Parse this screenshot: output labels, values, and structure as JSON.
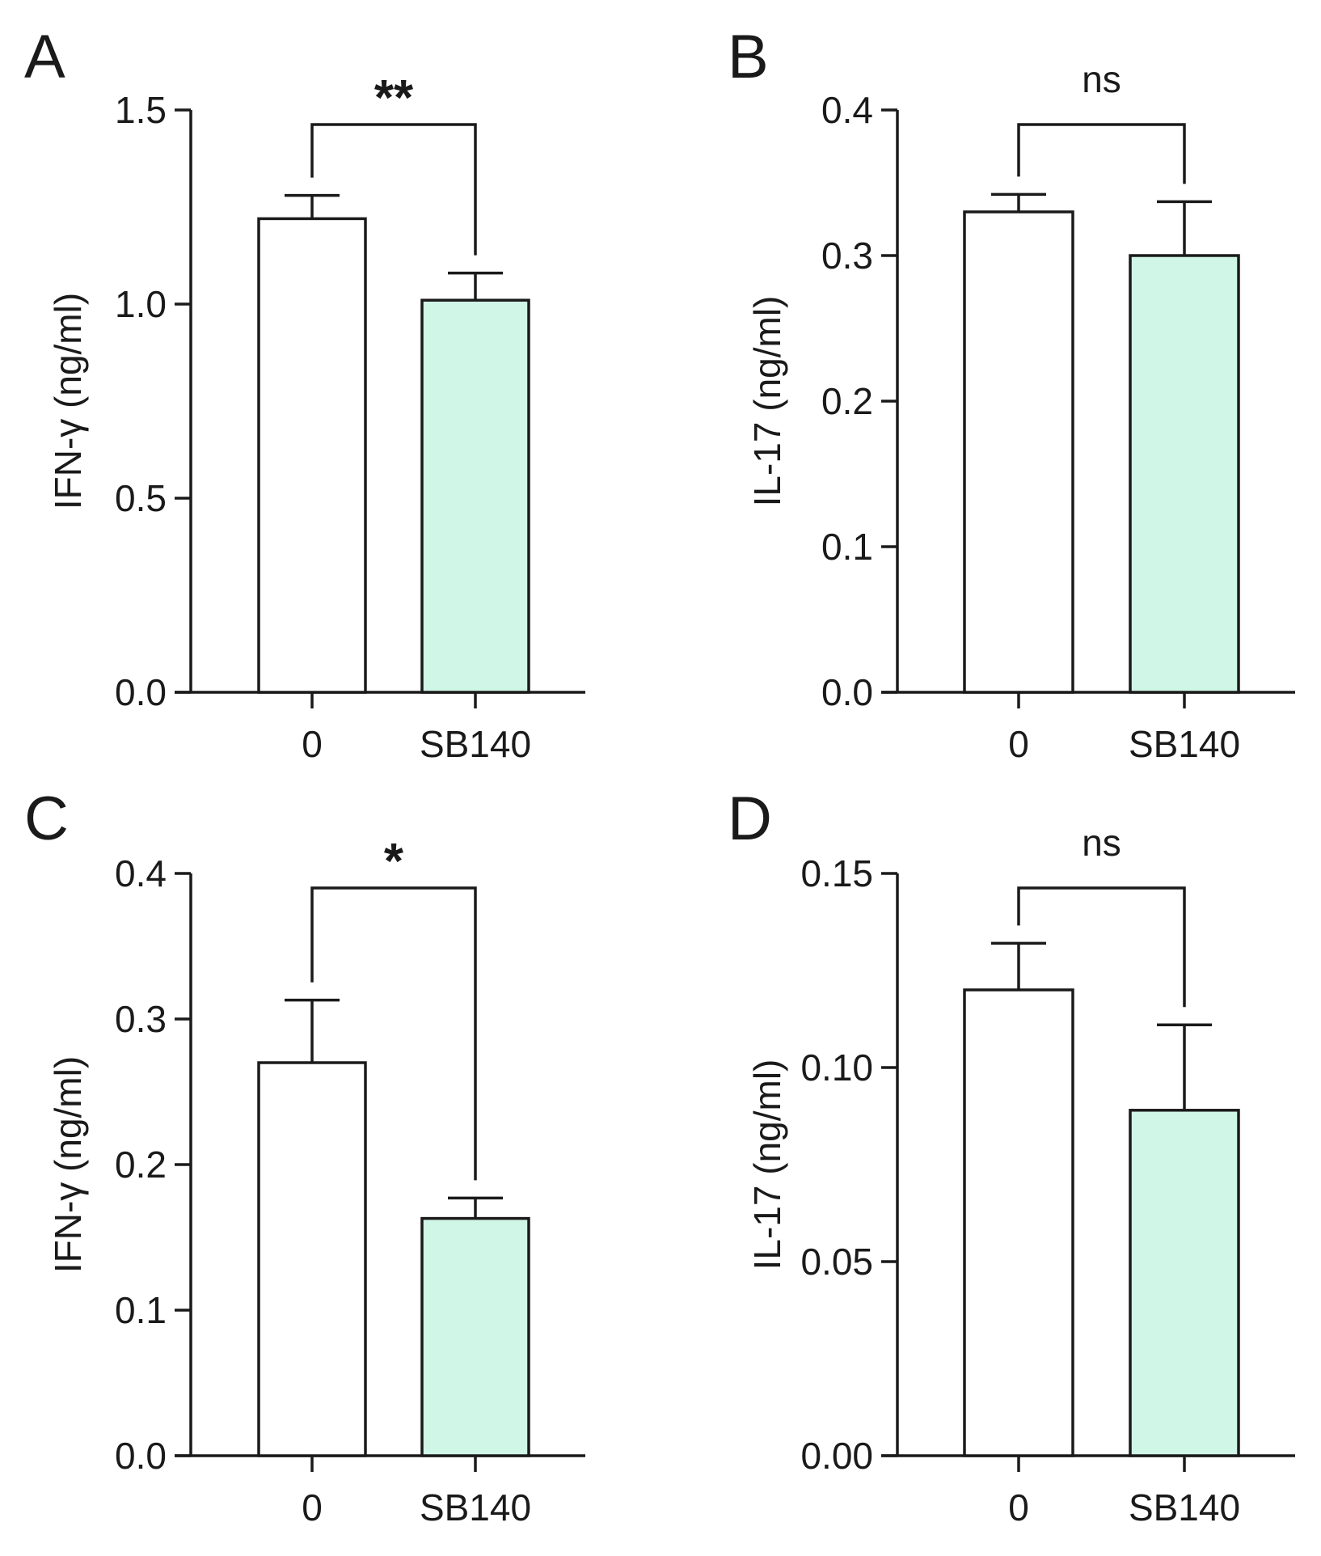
{
  "figure": {
    "colors": {
      "control_bar": "#ffffff",
      "treated_bar": "#cff6e6",
      "ink": "#1a1a1a"
    }
  },
  "chart_data": [
    {
      "panel": "A",
      "type": "bar",
      "categories": [
        "0",
        "SB140"
      ],
      "values": [
        1.22,
        1.01
      ],
      "errors": [
        0.06,
        0.07
      ],
      "ylabel": "IFN-γ (ng/ml)",
      "ylim": [
        0,
        1.5
      ],
      "yticks": [
        "0.0",
        "0.5",
        "1.0",
        "1.5"
      ],
      "significance": "**"
    },
    {
      "panel": "B",
      "type": "bar",
      "categories": [
        "0",
        "SB140"
      ],
      "values": [
        0.33,
        0.3
      ],
      "errors": [
        0.012,
        0.037
      ],
      "ylabel": "IL-17 (ng/ml)",
      "ylim": [
        0,
        0.4
      ],
      "yticks": [
        "0.0",
        "0.1",
        "0.2",
        "0.3",
        "0.4"
      ],
      "significance": "ns"
    },
    {
      "panel": "C",
      "type": "bar",
      "categories": [
        "0",
        "SB140"
      ],
      "values": [
        0.27,
        0.163
      ],
      "errors": [
        0.043,
        0.014
      ],
      "ylabel": "IFN-γ (ng/ml)",
      "ylim": [
        0,
        0.4
      ],
      "yticks": [
        "0.0",
        "0.1",
        "0.2",
        "0.3",
        "0.4"
      ],
      "significance": "*"
    },
    {
      "panel": "D",
      "type": "bar",
      "categories": [
        "0",
        "SB140"
      ],
      "values": [
        0.12,
        0.089
      ],
      "errors": [
        0.012,
        0.022
      ],
      "ylabel": "IL-17 (ng/ml)",
      "ylim": [
        0,
        0.15
      ],
      "yticks": [
        "0.00",
        "0.05",
        "0.10",
        "0.15"
      ],
      "significance": "ns"
    }
  ]
}
